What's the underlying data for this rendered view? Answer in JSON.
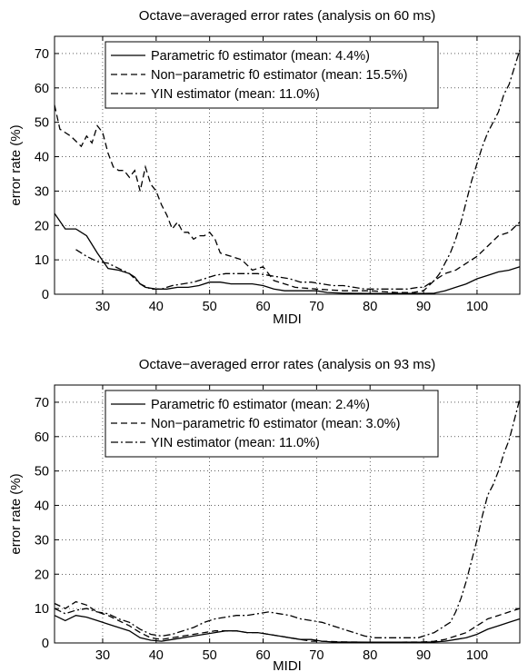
{
  "chart_data": [
    {
      "type": "line",
      "title": "Octave−averaged error rates (analysis on 60 ms)",
      "xlabel": "MIDI",
      "ylabel": "error rate (%)",
      "xlim": [
        21,
        108
      ],
      "ylim": [
        0,
        75
      ],
      "xticks": [
        30,
        40,
        50,
        60,
        70,
        80,
        90,
        100
      ],
      "yticks": [
        0,
        10,
        20,
        30,
        40,
        50,
        60,
        70
      ],
      "grid": true,
      "legend": "top-center",
      "series": [
        {
          "name": "Parametric f0 estimator (mean: 4.4%)",
          "style": "solid",
          "x": [
            21,
            23,
            25,
            27,
            29,
            31,
            33,
            35,
            36,
            37,
            38,
            40,
            42,
            44,
            46,
            48,
            50,
            52,
            54,
            56,
            58,
            60,
            62,
            64,
            66,
            68,
            70,
            72,
            75,
            80,
            85,
            90,
            92,
            94,
            96,
            98,
            100,
            102,
            104,
            106,
            108
          ],
          "y": [
            23.5,
            19,
            19,
            17,
            12,
            7.5,
            7,
            6,
            5,
            3,
            2,
            1.5,
            1.5,
            2,
            2,
            2.5,
            3.5,
            3.5,
            3,
            3,
            3,
            2.5,
            1.5,
            1,
            1,
            1,
            1,
            0.5,
            0.3,
            0.2,
            0.2,
            0.2,
            0.3,
            1,
            2,
            3,
            4.5,
            5.5,
            6.5,
            7,
            8
          ]
        },
        {
          "name": "Non−parametric f0 estimator (mean: 15.5%)",
          "style": "dashed",
          "x": [
            21,
            22,
            24,
            26,
            27,
            28,
            29,
            30,
            31,
            32,
            33,
            34,
            35,
            36,
            37,
            38,
            39,
            40,
            41,
            42,
            43,
            44,
            45,
            46,
            47,
            48,
            49,
            50,
            51,
            52,
            54,
            56,
            58,
            60,
            62,
            64,
            66,
            70,
            75,
            80,
            85,
            88,
            90,
            92,
            94,
            96,
            98,
            100,
            102,
            104,
            106,
            108
          ],
          "y": [
            55,
            48,
            46,
            43,
            46,
            44,
            49,
            47,
            41,
            37,
            36,
            36,
            34,
            36,
            30,
            37,
            32,
            30,
            26,
            23,
            19,
            21,
            18,
            18,
            16,
            17,
            17,
            18,
            16,
            12,
            11,
            10,
            7,
            8,
            4,
            3,
            2,
            1.5,
            1,
            1,
            0.5,
            0.5,
            1,
            4,
            6,
            7,
            9,
            11,
            14,
            17,
            18,
            21
          ]
        },
        {
          "name": "YIN estimator (mean: 11.0%)",
          "style": "dashdot",
          "x": [
            25,
            27,
            29,
            31,
            33,
            35,
            37,
            39,
            41,
            43,
            45,
            47,
            49,
            51,
            53,
            55,
            57,
            59,
            61,
            63,
            65,
            67,
            69,
            71,
            73,
            75,
            77,
            79,
            81,
            83,
            85,
            87,
            89,
            90,
            91,
            92,
            93,
            94,
            95,
            96,
            97,
            98,
            99,
            100,
            101,
            102,
            103,
            104,
            105,
            106,
            107,
            108
          ],
          "y": [
            13,
            11,
            9.5,
            9,
            7.5,
            6,
            3,
            1.5,
            1.5,
            2.5,
            3,
            3.5,
            4.5,
            5.5,
            6,
            6,
            6,
            6,
            5.5,
            5,
            4.5,
            3.5,
            3.5,
            3,
            2.5,
            2.5,
            2,
            1.5,
            1.5,
            1.5,
            1.5,
            1.5,
            2,
            2,
            3,
            4,
            6,
            9,
            12,
            16,
            21,
            27,
            33,
            38,
            43,
            47,
            50,
            53,
            58,
            61,
            66,
            71
          ]
        }
      ]
    },
    {
      "type": "line",
      "title": "Octave−averaged error rates (analysis on 93 ms)",
      "xlabel": "MIDI",
      "ylabel": "error rate (%)",
      "xlim": [
        21,
        108
      ],
      "ylim": [
        0,
        75
      ],
      "xticks": [
        30,
        40,
        50,
        60,
        70,
        80,
        90,
        100
      ],
      "yticks": [
        0,
        10,
        20,
        30,
        40,
        50,
        60,
        70
      ],
      "grid": true,
      "legend": "top-center",
      "series": [
        {
          "name": "Parametric f0 estimator (mean: 2.4%)",
          "style": "solid",
          "x": [
            21,
            23,
            25,
            27,
            29,
            31,
            33,
            35,
            37,
            39,
            41,
            43,
            45,
            47,
            49,
            51,
            53,
            55,
            57,
            59,
            61,
            63,
            65,
            67,
            69,
            71,
            73,
            80,
            85,
            90,
            92,
            94,
            96,
            98,
            100,
            102,
            104,
            106,
            108
          ],
          "y": [
            8,
            6.5,
            8,
            7.5,
            6.5,
            5.5,
            4.5,
            3.5,
            1.5,
            0.8,
            0.5,
            1,
            1.5,
            2,
            2.5,
            3,
            3.5,
            3.5,
            3,
            3,
            2.5,
            2,
            1.5,
            1,
            1,
            0.5,
            0.3,
            0.2,
            0.2,
            0.2,
            0.3,
            0.5,
            1,
            1.5,
            2.5,
            4,
            5,
            6,
            7
          ]
        },
        {
          "name": "Non−parametric f0 estimator (mean: 3.0%)",
          "style": "dashed",
          "x": [
            21,
            23,
            25,
            27,
            29,
            31,
            33,
            35,
            37,
            39,
            41,
            43,
            45,
            47,
            49,
            51,
            53,
            55,
            57,
            59,
            61,
            63,
            65,
            67,
            69,
            71,
            75,
            80,
            85,
            90,
            92,
            94,
            96,
            98,
            100,
            102,
            104,
            106,
            108
          ],
          "y": [
            11.5,
            10,
            12,
            11,
            9,
            8,
            6.5,
            5,
            3,
            1.5,
            1,
            1.5,
            2,
            2.5,
            3,
            3.5,
            3.5,
            3.5,
            3,
            3,
            2.5,
            2,
            1.5,
            1,
            0.5,
            0.5,
            0.3,
            0.2,
            0.2,
            0.3,
            0.5,
            1,
            2,
            3,
            5,
            7,
            8,
            9,
            10
          ]
        },
        {
          "name": "YIN estimator (mean: 11.0%)",
          "style": "dashdot",
          "x": [
            21,
            23,
            25,
            27,
            29,
            31,
            33,
            35,
            37,
            39,
            41,
            43,
            45,
            47,
            49,
            51,
            53,
            55,
            57,
            59,
            61,
            63,
            65,
            67,
            69,
            71,
            73,
            75,
            77,
            79,
            81,
            83,
            85,
            87,
            89,
            90,
            91,
            92,
            93,
            94,
            95,
            96,
            97,
            98,
            99,
            100,
            101,
            102,
            103,
            104,
            105,
            106,
            107,
            108
          ],
          "y": [
            10,
            8.5,
            9.5,
            10,
            9,
            8.5,
            7,
            6,
            4,
            2.5,
            2,
            2.5,
            3.5,
            4.5,
            6,
            7,
            7.5,
            8,
            8,
            8.5,
            9,
            8.5,
            8,
            7,
            6.5,
            6,
            5,
            4,
            3,
            2,
            1.5,
            1.5,
            1.5,
            1.5,
            1.5,
            2,
            2.5,
            3,
            4,
            5,
            6,
            9,
            13,
            18,
            24,
            30,
            37,
            43,
            46,
            50,
            55,
            59,
            65,
            71
          ]
        }
      ]
    }
  ]
}
